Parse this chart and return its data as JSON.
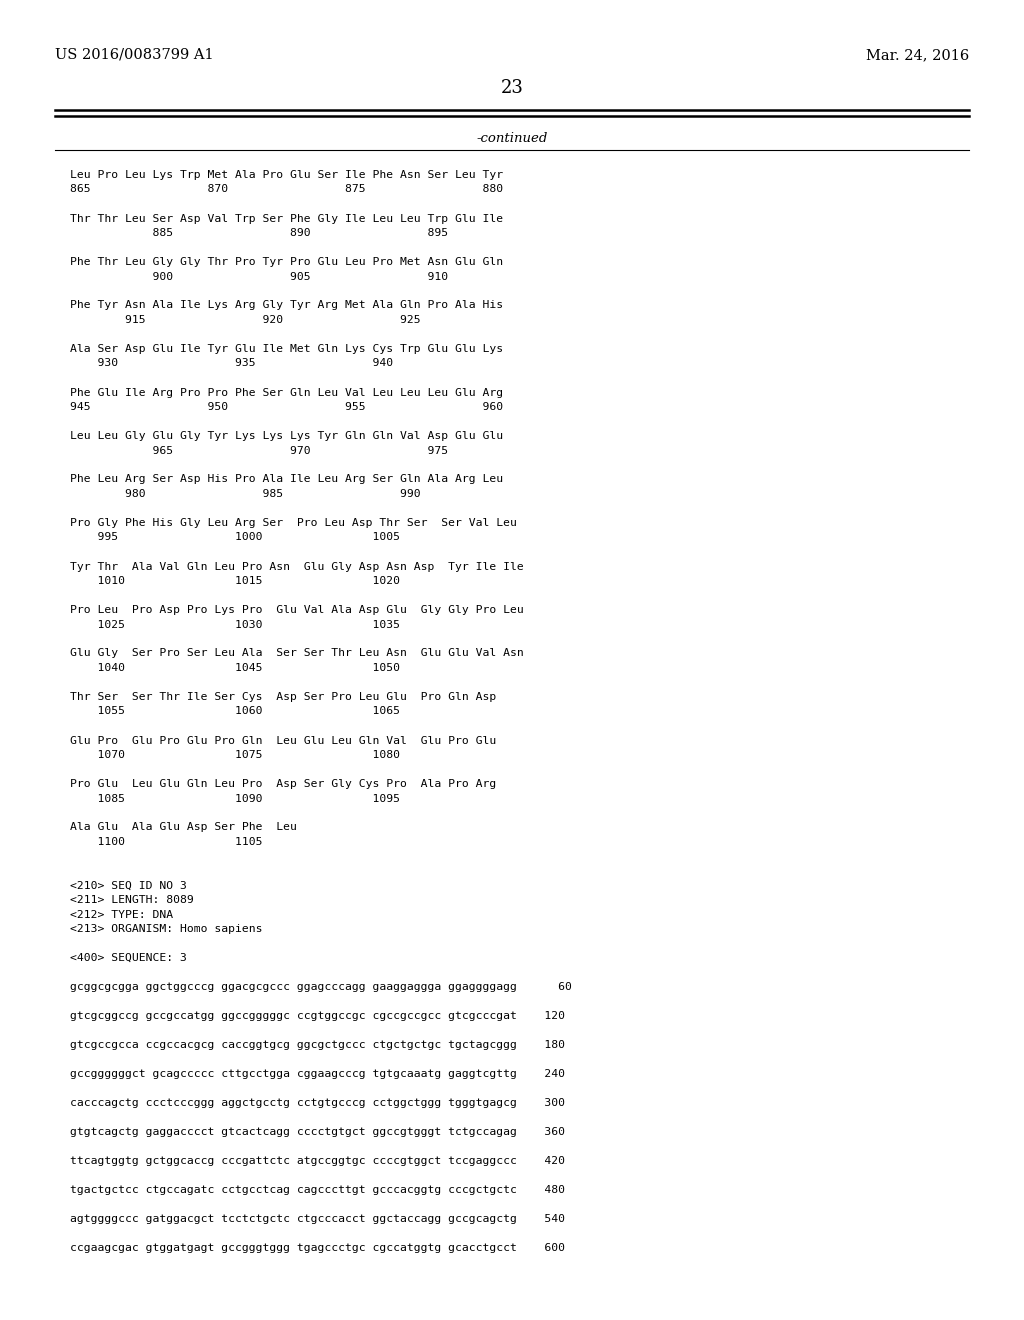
{
  "header_left": "US 2016/0083799 A1",
  "header_right": "Mar. 24, 2016",
  "page_number": "23",
  "continued_label": "-continued",
  "background_color": "#ffffff",
  "text_color": "#000000",
  "content": [
    [
      "Leu Pro Leu Lys Trp Met Ala Pro Glu Ser Ile Phe Asn Ser Leu Tyr",
      "amino"
    ],
    [
      "865                 870                 875                 880",
      "number"
    ],
    [
      "",
      "blank"
    ],
    [
      "Thr Thr Leu Ser Asp Val Trp Ser Phe Gly Ile Leu Leu Trp Glu Ile",
      "amino"
    ],
    [
      "            885                 890                 895",
      "number"
    ],
    [
      "",
      "blank"
    ],
    [
      "Phe Thr Leu Gly Gly Thr Pro Tyr Pro Glu Leu Pro Met Asn Glu Gln",
      "amino"
    ],
    [
      "            900                 905                 910",
      "number"
    ],
    [
      "",
      "blank"
    ],
    [
      "Phe Tyr Asn Ala Ile Lys Arg Gly Tyr Arg Met Ala Gln Pro Ala His",
      "amino"
    ],
    [
      "        915                 920                 925",
      "number"
    ],
    [
      "",
      "blank"
    ],
    [
      "Ala Ser Asp Glu Ile Tyr Glu Ile Met Gln Lys Cys Trp Glu Glu Lys",
      "amino"
    ],
    [
      "    930                 935                 940",
      "number"
    ],
    [
      "",
      "blank"
    ],
    [
      "Phe Glu Ile Arg Pro Pro Phe Ser Gln Leu Val Leu Leu Leu Glu Arg",
      "amino"
    ],
    [
      "945                 950                 955                 960",
      "number"
    ],
    [
      "",
      "blank"
    ],
    [
      "Leu Leu Gly Glu Gly Tyr Lys Lys Lys Tyr Gln Gln Val Asp Glu Glu",
      "amino"
    ],
    [
      "            965                 970                 975",
      "number"
    ],
    [
      "",
      "blank"
    ],
    [
      "Phe Leu Arg Ser Asp His Pro Ala Ile Leu Arg Ser Gln Ala Arg Leu",
      "amino"
    ],
    [
      "        980                 985                 990",
      "number"
    ],
    [
      "",
      "blank"
    ],
    [
      "Pro Gly Phe His Gly Leu Arg Ser  Pro Leu Asp Thr Ser  Ser Val Leu",
      "amino"
    ],
    [
      "    995                 1000                1005",
      "number"
    ],
    [
      "",
      "blank"
    ],
    [
      "Tyr Thr  Ala Val Gln Leu Pro Asn  Glu Gly Asp Asn Asp  Tyr Ile Ile",
      "amino"
    ],
    [
      "    1010                1015                1020",
      "number"
    ],
    [
      "",
      "blank"
    ],
    [
      "Pro Leu  Pro Asp Pro Lys Pro  Glu Val Ala Asp Glu  Gly Gly Pro Leu",
      "amino"
    ],
    [
      "    1025                1030                1035",
      "number"
    ],
    [
      "",
      "blank"
    ],
    [
      "Glu Gly  Ser Pro Ser Leu Ala  Ser Ser Thr Leu Asn  Glu Glu Val Asn",
      "amino"
    ],
    [
      "    1040                1045                1050",
      "number"
    ],
    [
      "",
      "blank"
    ],
    [
      "Thr Ser  Ser Thr Ile Ser Cys  Asp Ser Pro Leu Glu  Pro Gln Asp",
      "amino"
    ],
    [
      "    1055                1060                1065",
      "number"
    ],
    [
      "",
      "blank"
    ],
    [
      "Glu Pro  Glu Pro Glu Pro Gln  Leu Glu Leu Gln Val  Glu Pro Glu",
      "amino"
    ],
    [
      "    1070                1075                1080",
      "number"
    ],
    [
      "",
      "blank"
    ],
    [
      "Pro Glu  Leu Glu Gln Leu Pro  Asp Ser Gly Cys Pro  Ala Pro Arg",
      "amino"
    ],
    [
      "    1085                1090                1095",
      "number"
    ],
    [
      "",
      "blank"
    ],
    [
      "Ala Glu  Ala Glu Asp Ser Phe  Leu",
      "amino"
    ],
    [
      "    1100                1105",
      "number"
    ],
    [
      "",
      "blank"
    ],
    [
      "",
      "blank"
    ],
    [
      "<210> SEQ ID NO 3",
      "meta"
    ],
    [
      "<211> LENGTH: 8089",
      "meta"
    ],
    [
      "<212> TYPE: DNA",
      "meta"
    ],
    [
      "<213> ORGANISM: Homo sapiens",
      "meta"
    ],
    [
      "",
      "blank"
    ],
    [
      "<400> SEQUENCE: 3",
      "meta"
    ],
    [
      "",
      "blank"
    ],
    [
      "gcggcgcgga ggctggcccg ggacgcgccc ggagcccagg gaaggaggga ggaggggagg      60",
      "seq"
    ],
    [
      "",
      "blank"
    ],
    [
      "gtcgcggccg gccgccatgg ggccgggggc ccgtggccgc cgccgccgcc gtcgcccgat    120",
      "seq"
    ],
    [
      "",
      "blank"
    ],
    [
      "gtcgccgcca ccgccacgcg caccggtgcg ggcgctgccc ctgctgctgc tgctagcggg    180",
      "seq"
    ],
    [
      "",
      "blank"
    ],
    [
      "gccggggggct gcagccccc cttgcctgga cggaagcccg tgtgcaaatg gaggtcgttg    240",
      "seq"
    ],
    [
      "",
      "blank"
    ],
    [
      "cacccagctg ccctcccggg aggctgcctg cctgtgcccg cctggctggg tgggtgagcg    300",
      "seq"
    ],
    [
      "",
      "blank"
    ],
    [
      "gtgtcagctg gaggacccct gtcactcagg cccctgtgct ggccgtgggt tctgccagag    360",
      "seq"
    ],
    [
      "",
      "blank"
    ],
    [
      "ttcagtggtg gctggcaccg cccgattctc atgccggtgc ccccgtggct tccgaggccc    420",
      "seq"
    ],
    [
      "",
      "blank"
    ],
    [
      "tgactgctcc ctgccagatc cctgcctcag cagcccttgt gcccacggtg cccgctgctc    480",
      "seq"
    ],
    [
      "",
      "blank"
    ],
    [
      "agtggggccc gatggacgct tcctctgctc ctgcccacct ggctaccagg gccgcagctg    540",
      "seq"
    ],
    [
      "",
      "blank"
    ],
    [
      "ccgaagcgac gtggatgagt gccgggtggg tgagccctgc cgccatggtg gcacctgcct    600",
      "seq"
    ]
  ]
}
